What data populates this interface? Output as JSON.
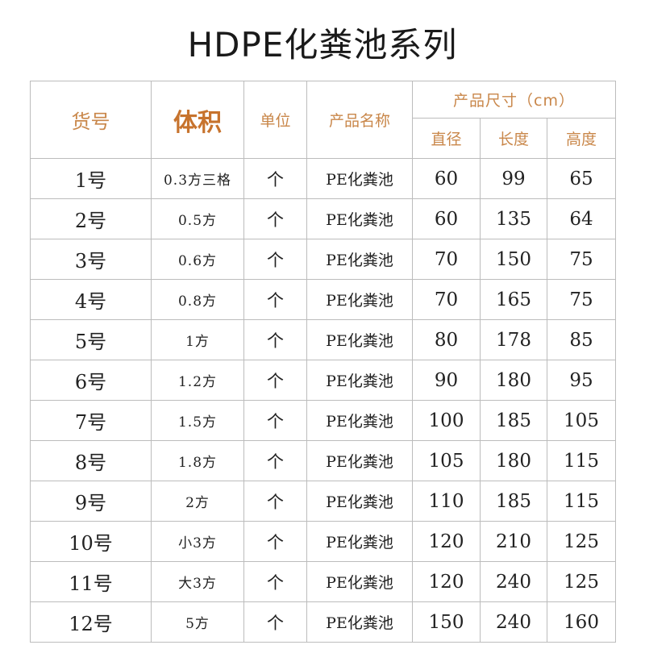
{
  "title": "HDPE化粪池系列",
  "header": {
    "code": "货号",
    "volume": "体积",
    "unit": "单位",
    "name": "产品名称",
    "size_group": "产品尺寸（cm）",
    "diameter": "直径",
    "length": "长度",
    "height": "高度"
  },
  "rows": [
    {
      "code": "1号",
      "volume": "0.3方三格",
      "unit": "个",
      "name": "PE化粪池",
      "diameter": "60",
      "length": "99",
      "height": "65"
    },
    {
      "code": "2号",
      "volume": "0.5方",
      "unit": "个",
      "name": "PE化粪池",
      "diameter": "60",
      "length": "135",
      "height": "64"
    },
    {
      "code": "3号",
      "volume": "0.6方",
      "unit": "个",
      "name": "PE化粪池",
      "diameter": "70",
      "length": "150",
      "height": "75"
    },
    {
      "code": "4号",
      "volume": "0.8方",
      "unit": "个",
      "name": "PE化粪池",
      "diameter": "70",
      "length": "165",
      "height": "75"
    },
    {
      "code": "5号",
      "volume": "1方",
      "unit": "个",
      "name": "PE化粪池",
      "diameter": "80",
      "length": "178",
      "height": "85"
    },
    {
      "code": "6号",
      "volume": "1.2方",
      "unit": "个",
      "name": "PE化粪池",
      "diameter": "90",
      "length": "180",
      "height": "95"
    },
    {
      "code": "7号",
      "volume": "1.5方",
      "unit": "个",
      "name": "PE化粪池",
      "diameter": "100",
      "length": "185",
      "height": "105"
    },
    {
      "code": "8号",
      "volume": "1.8方",
      "unit": "个",
      "name": "PE化粪池",
      "diameter": "105",
      "length": "180",
      "height": "115"
    },
    {
      "code": "9号",
      "volume": "2方",
      "unit": "个",
      "name": "PE化粪池",
      "diameter": "110",
      "length": "185",
      "height": "115"
    },
    {
      "code": "10号",
      "volume": "小3方",
      "unit": "个",
      "name": "PE化粪池",
      "diameter": "120",
      "length": "210",
      "height": "125"
    },
    {
      "code": "11号",
      "volume": "大3方",
      "unit": "个",
      "name": "PE化粪池",
      "diameter": "120",
      "length": "240",
      "height": "125"
    },
    {
      "code": "12号",
      "volume": "5方",
      "unit": "个",
      "name": "PE化粪池",
      "diameter": "150",
      "length": "240",
      "height": "160"
    }
  ]
}
